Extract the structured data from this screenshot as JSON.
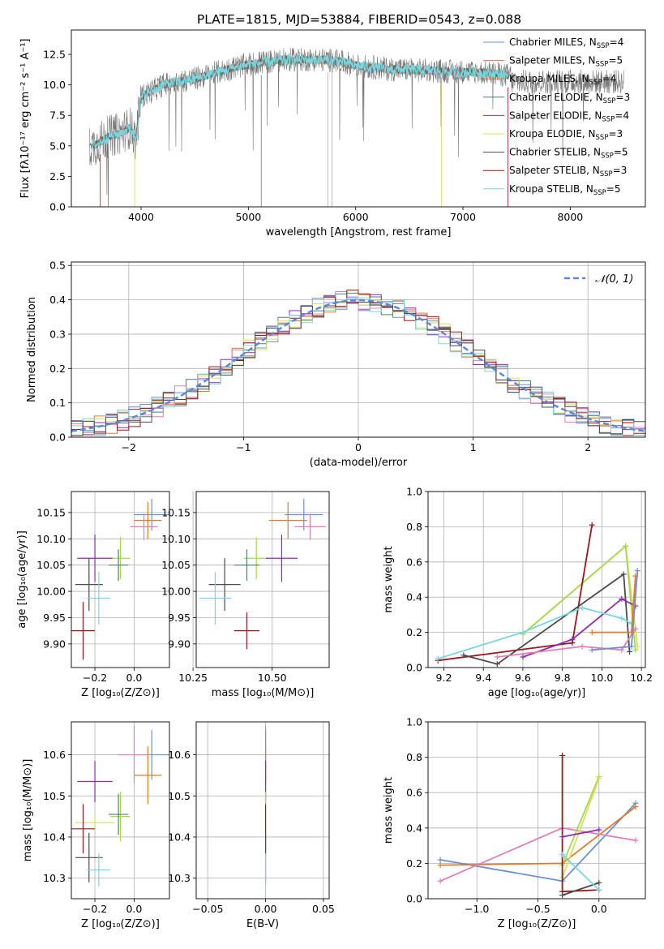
{
  "title": "PLATE=1815, MJD=53884, FIBERID=0543, z=0.088",
  "colors": {
    "chabrier_miles": "#6b8fd6",
    "salpeter_miles": "#ef6c62",
    "kroupa_miles": "#e07b2a",
    "chabrier_elodie": "#4f7f6f",
    "salpeter_elodie": "#8e2ab0",
    "kroupa_elodie": "#d6e05a",
    "chabrier_stelib": "#4b4b4b",
    "salpeter_stelib": "#a0141c",
    "kroupa_stelib": "#78d7de",
    "pink": "#e17fb6",
    "green": "#a6d84a",
    "normal_curve": "#5b8ad8"
  },
  "chart_data": [
    {
      "id": "spectrum",
      "type": "line",
      "xlabel": "wavelength [Angstrom, rest frame]",
      "ylabel": "Flux [fλ10⁻¹⁷ erg cm⁻² s⁻¹ A⁻¹]",
      "xlim": [
        3350,
        8700
      ],
      "ylim": [
        0,
        14.5
      ],
      "xticks": [
        "4000",
        "5000",
        "6000",
        "7000",
        "8000"
      ],
      "yticks": [
        "0.0",
        "2.5",
        "5.0",
        "7.5",
        "10.0",
        "12.5"
      ],
      "legend": [
        {
          "label": "Chabrier MILES, N",
          "sub": "SSP",
          "tail": "=4"
        },
        {
          "label": "Salpeter MILES, N",
          "sub": "SSP",
          "tail": "=5"
        },
        {
          "label": "Kroupa MILES, N",
          "sub": "SSP",
          "tail": "=4"
        },
        {
          "label": "Chabrier ELODIE, N",
          "sub": "SSP",
          "tail": "=3"
        },
        {
          "label": "Salpeter ELODIE, N",
          "sub": "SSP",
          "tail": "=4"
        },
        {
          "label": "Kroupa ELODIE, N",
          "sub": "SSP",
          "tail": "=3"
        },
        {
          "label": "Chabrier STELIB, N",
          "sub": "SSP",
          "tail": "=5"
        },
        {
          "label": "Salpeter STELIB, N",
          "sub": "SSP",
          "tail": "=3"
        },
        {
          "label": "Kroupa STELIB, N",
          "sub": "SSP",
          "tail": "=5"
        }
      ],
      "continuum": [
        [
          3500,
          4.8
        ],
        [
          3600,
          5.2
        ],
        [
          3700,
          5.8
        ],
        [
          3800,
          6.0
        ],
        [
          3900,
          6.5
        ],
        [
          3950,
          5.5
        ],
        [
          4000,
          9.0
        ],
        [
          4100,
          9.5
        ],
        [
          4200,
          10.0
        ],
        [
          4300,
          10.2
        ],
        [
          4500,
          10.5
        ],
        [
          4700,
          11.0
        ],
        [
          4900,
          11.5
        ],
        [
          5100,
          11.8
        ],
        [
          5300,
          12.0
        ],
        [
          5500,
          12.1
        ],
        [
          5800,
          12.0
        ],
        [
          6000,
          11.6
        ],
        [
          6300,
          11.3
        ],
        [
          6600,
          11.2
        ],
        [
          6900,
          11.1
        ],
        [
          7200,
          11.0
        ],
        [
          7400,
          10.8
        ]
      ]
    },
    {
      "id": "residuals",
      "type": "histogram",
      "xlabel": "(data-model)/error",
      "ylabel": "Normed distribution",
      "xlim": [
        -2.5,
        2.5
      ],
      "ylim": [
        0,
        0.51
      ],
      "xticks": [
        "−2",
        "−1",
        "0",
        "1",
        "2"
      ],
      "yticks": [
        "0.0",
        "0.1",
        "0.2",
        "0.3",
        "0.4",
        "0.5"
      ],
      "legend": "𝒩(0, 1)",
      "bin_width": 0.1
    },
    {
      "id": "age_vs_Z",
      "type": "scatter",
      "xlabel": "Z [log₁₀(Z/Z⊙)]",
      "ylabel": "age  [log₁₀(age/yr)]",
      "xlim": [
        -0.32,
        0.18
      ],
      "ylim": [
        9.855,
        10.19
      ],
      "xticks": [
        "−0.2",
        "0.0"
      ],
      "yticks": [
        "9.90",
        "9.95",
        "10.00",
        "10.05",
        "10.10",
        "10.15"
      ],
      "points": [
        {
          "c": "chabrier_miles",
          "x": 0.09,
          "xe": 0.09,
          "y": 10.146,
          "ye": 0.03
        },
        {
          "c": "kroupa_miles",
          "x": 0.07,
          "xe": 0.07,
          "y": 10.135,
          "ye": 0.035
        },
        {
          "c": "pink",
          "x": 0.05,
          "xe": 0.07,
          "y": 10.123,
          "ye": 0.025
        },
        {
          "c": "green",
          "x": -0.07,
          "xe": 0.05,
          "y": 10.063,
          "ye": 0.04
        },
        {
          "c": "salpeter_elodie",
          "x": -0.2,
          "xe": 0.09,
          "y": 10.063,
          "ye": 0.045
        },
        {
          "c": "chabrier_elodie",
          "x": -0.08,
          "xe": 0.05,
          "y": 10.05,
          "ye": 0.03
        },
        {
          "c": "chabrier_stelib",
          "x": -0.23,
          "xe": 0.07,
          "y": 10.013,
          "ye": 0.05
        },
        {
          "c": "kroupa_stelib",
          "x": -0.18,
          "xe": 0.06,
          "y": 9.987,
          "ye": 0.05
        },
        {
          "c": "salpeter_stelib",
          "x": -0.26,
          "xe": 0.06,
          "y": 9.925,
          "ye": 0.055
        }
      ]
    },
    {
      "id": "age_vs_mass",
      "type": "scatter",
      "xlabel": "mass [log₁₀(M/M⊙)]",
      "ylabel": "",
      "xlim": [
        10.26,
        10.68
      ],
      "ylim": [
        9.855,
        10.19
      ],
      "xticks": [
        "10.25",
        "10.50"
      ],
      "yticks": [
        "9.90",
        "9.95",
        "10.00",
        "10.05",
        "10.10",
        "10.15"
      ],
      "points": [
        {
          "c": "chabrier_miles",
          "x": 10.6,
          "xe": 0.06,
          "y": 10.146,
          "ye": 0.03
        },
        {
          "c": "kroupa_miles",
          "x": 10.55,
          "xe": 0.06,
          "y": 10.135,
          "ye": 0.035
        },
        {
          "c": "pink",
          "x": 10.62,
          "xe": 0.05,
          "y": 10.123,
          "ye": 0.025
        },
        {
          "c": "green",
          "x": 10.45,
          "xe": 0.04,
          "y": 10.063,
          "ye": 0.04
        },
        {
          "c": "salpeter_elodie",
          "x": 10.53,
          "xe": 0.05,
          "y": 10.063,
          "ye": 0.045
        },
        {
          "c": "chabrier_elodie",
          "x": 10.42,
          "xe": 0.04,
          "y": 10.05,
          "ye": 0.03
        },
        {
          "c": "chabrier_stelib",
          "x": 10.35,
          "xe": 0.05,
          "y": 10.013,
          "ye": 0.05
        },
        {
          "c": "kroupa_stelib",
          "x": 10.32,
          "xe": 0.05,
          "y": 9.987,
          "ye": 0.05
        },
        {
          "c": "salpeter_stelib",
          "x": 10.42,
          "xe": 0.04,
          "y": 9.925,
          "ye": 0.035
        }
      ]
    },
    {
      "id": "weight_vs_age",
      "type": "line",
      "xlabel": "age  [log₁₀(age/yr)]",
      "ylabel": "mass weight",
      "xlim": [
        9.12,
        10.22
      ],
      "ylim": [
        0,
        1
      ],
      "xticks": [
        "9.2",
        "9.4",
        "9.6",
        "9.8",
        "10.0",
        "10.2"
      ],
      "yticks": [
        "0.0",
        "0.2",
        "0.4",
        "0.6",
        "0.8",
        "1.0"
      ],
      "series": [
        {
          "c": "kroupa_elodie",
          "pts": [
            [
              9.6,
              0.19
            ],
            [
              10.12,
              0.69
            ],
            [
              10.18,
              0.12
            ]
          ]
        },
        {
          "c": "green",
          "pts": [
            [
              9.6,
              0.19
            ],
            [
              10.12,
              0.69
            ],
            [
              10.17,
              0.1
            ]
          ]
        },
        {
          "c": "salpeter_stelib",
          "pts": [
            [
              9.17,
              0.04
            ],
            [
              9.85,
              0.14
            ],
            [
              9.95,
              0.81
            ]
          ]
        },
        {
          "c": "chabrier_stelib",
          "pts": [
            [
              9.3,
              0.07
            ],
            [
              9.47,
              0.02
            ],
            [
              10.11,
              0.53
            ],
            [
              10.14,
              0.09
            ]
          ]
        },
        {
          "c": "salpeter_elodie",
          "pts": [
            [
              9.6,
              0.06
            ],
            [
              9.85,
              0.16
            ],
            [
              10.1,
              0.39
            ],
            [
              10.17,
              0.35
            ]
          ]
        },
        {
          "c": "kroupa_stelib",
          "pts": [
            [
              9.17,
              0.05
            ],
            [
              9.6,
              0.2
            ],
            [
              9.9,
              0.34
            ],
            [
              10.1,
              0.28
            ],
            [
              10.15,
              0.25
            ]
          ]
        },
        {
          "c": "pink",
          "pts": [
            [
              9.47,
              0.06
            ],
            [
              9.9,
              0.12
            ],
            [
              10.1,
              0.1
            ],
            [
              10.17,
              0.22
            ]
          ]
        },
        {
          "c": "chabrier_miles",
          "pts": [
            [
              9.95,
              0.1
            ],
            [
              10.15,
              0.12
            ],
            [
              10.18,
              0.55
            ]
          ]
        },
        {
          "c": "kroupa_miles",
          "pts": [
            [
              9.95,
              0.2
            ],
            [
              10.15,
              0.2
            ],
            [
              10.17,
              0.52
            ]
          ]
        }
      ]
    },
    {
      "id": "mass_vs_Z",
      "type": "scatter",
      "xlabel": "Z [log₁₀(Z/Z⊙)]",
      "ylabel": "mass [log₁₀(M/M⊙)]",
      "xlim": [
        -0.32,
        0.18
      ],
      "ylim": [
        10.25,
        10.68
      ],
      "xticks": [
        "−0.2",
        "0.0"
      ],
      "yticks": [
        "10.3",
        "10.4",
        "10.5",
        "10.6"
      ],
      "points": [
        {
          "c": "chabrier_miles",
          "x": 0.09,
          "xe": 0.09,
          "y": 10.6,
          "ye": 0.06
        },
        {
          "c": "kroupa_miles",
          "x": 0.07,
          "xe": 0.07,
          "y": 10.55,
          "ye": 0.07
        },
        {
          "c": "pink",
          "x": 0.0,
          "xe": 0.08,
          "y": 10.6,
          "ye": 0.07
        },
        {
          "c": "green",
          "x": -0.07,
          "xe": 0.05,
          "y": 10.45,
          "ye": 0.06
        },
        {
          "c": "salpeter_elodie",
          "x": -0.2,
          "xe": 0.09,
          "y": 10.535,
          "ye": 0.05
        },
        {
          "c": "chabrier_elodie",
          "x": -0.08,
          "xe": 0.05,
          "y": 10.455,
          "ye": 0.05
        },
        {
          "c": "kroupa_elodie",
          "x": -0.2,
          "xe": 0.1,
          "y": 10.435,
          "ye": 0.02
        },
        {
          "c": "salpeter_stelib",
          "x": -0.26,
          "xe": 0.06,
          "y": 10.42,
          "ye": 0.06
        },
        {
          "c": "chabrier_stelib",
          "x": -0.23,
          "xe": 0.07,
          "y": 10.35,
          "ye": 0.06
        },
        {
          "c": "kroupa_stelib",
          "x": -0.18,
          "xe": 0.06,
          "y": 10.32,
          "ye": 0.04
        }
      ]
    },
    {
      "id": "mass_vs_ebv",
      "type": "scatter",
      "xlabel": "E(B-V)",
      "ylabel": "",
      "xlim": [
        -0.06,
        0.055
      ],
      "ylim": [
        10.25,
        10.68
      ],
      "xticks": [
        "−0.05",
        "0.00",
        "0.05"
      ],
      "yticks": [
        "10.3",
        "10.4",
        "10.5",
        "10.6"
      ],
      "points": [
        {
          "c": "pink",
          "x": 0,
          "xe": 0,
          "y": 10.6,
          "ye": 0.07
        },
        {
          "c": "chabrier_miles",
          "x": 0,
          "xe": 0,
          "y": 10.6,
          "ye": 0.06
        },
        {
          "c": "kroupa_miles",
          "x": 0,
          "xe": 0,
          "y": 10.55,
          "ye": 0.07
        },
        {
          "c": "salpeter_elodie",
          "x": 0,
          "xe": 0,
          "y": 10.535,
          "ye": 0.05
        },
        {
          "c": "green",
          "x": 0,
          "xe": 0,
          "y": 10.45,
          "ye": 0.06
        },
        {
          "c": "salpeter_stelib",
          "x": 0,
          "xe": 0,
          "y": 10.42,
          "ye": 0.06
        },
        {
          "c": "chabrier_stelib",
          "x": 0,
          "xe": 0,
          "y": 10.35,
          "ye": 0.06
        },
        {
          "c": "kroupa_stelib",
          "x": 0,
          "xe": 0,
          "y": 10.32,
          "ye": 0.04
        }
      ]
    },
    {
      "id": "weight_vs_Z",
      "type": "line",
      "xlabel": "Z [log₁₀(Z/Z⊙)]",
      "ylabel": "mass weight",
      "xlim": [
        -1.4,
        0.38
      ],
      "ylim": [
        0,
        1
      ],
      "xticks": [
        "−1.0",
        "−0.5",
        "0.0"
      ],
      "yticks": [
        "0.0",
        "0.2",
        "0.4",
        "0.6",
        "0.8",
        "1.0"
      ],
      "series": [
        {
          "c": "chabrier_miles",
          "pts": [
            [
              -1.3,
              0.22
            ],
            [
              -0.3,
              0.1
            ],
            [
              0.3,
              0.54
            ]
          ]
        },
        {
          "c": "kroupa_miles",
          "pts": [
            [
              -1.3,
              0.19
            ],
            [
              -0.3,
              0.2
            ],
            [
              0.3,
              0.52
            ]
          ]
        },
        {
          "c": "pink",
          "pts": [
            [
              -1.3,
              0.1
            ],
            [
              -0.3,
              0.4
            ],
            [
              0.3,
              0.33
            ]
          ]
        },
        {
          "c": "green",
          "pts": [
            [
              -0.3,
              0.19
            ],
            [
              0.0,
              0.69
            ]
          ]
        },
        {
          "c": "kroupa_elodie",
          "pts": [
            [
              -0.3,
              0.12
            ],
            [
              0.0,
              0.68
            ]
          ]
        },
        {
          "c": "salpeter_stelib",
          "pts": [
            [
              -0.3,
              0.81
            ],
            [
              -0.3,
              0.04
            ],
            [
              0.0,
              0.05
            ]
          ]
        },
        {
          "c": "salpeter_elodie",
          "pts": [
            [
              -0.3,
              0.35
            ],
            [
              0.0,
              0.39
            ]
          ]
        },
        {
          "c": "chabrier_stelib",
          "pts": [
            [
              -0.3,
              0.02
            ],
            [
              0.0,
              0.09
            ]
          ]
        },
        {
          "c": "kroupa_stelib",
          "pts": [
            [
              -0.3,
              0.25
            ],
            [
              0.0,
              0.05
            ]
          ]
        }
      ]
    }
  ]
}
